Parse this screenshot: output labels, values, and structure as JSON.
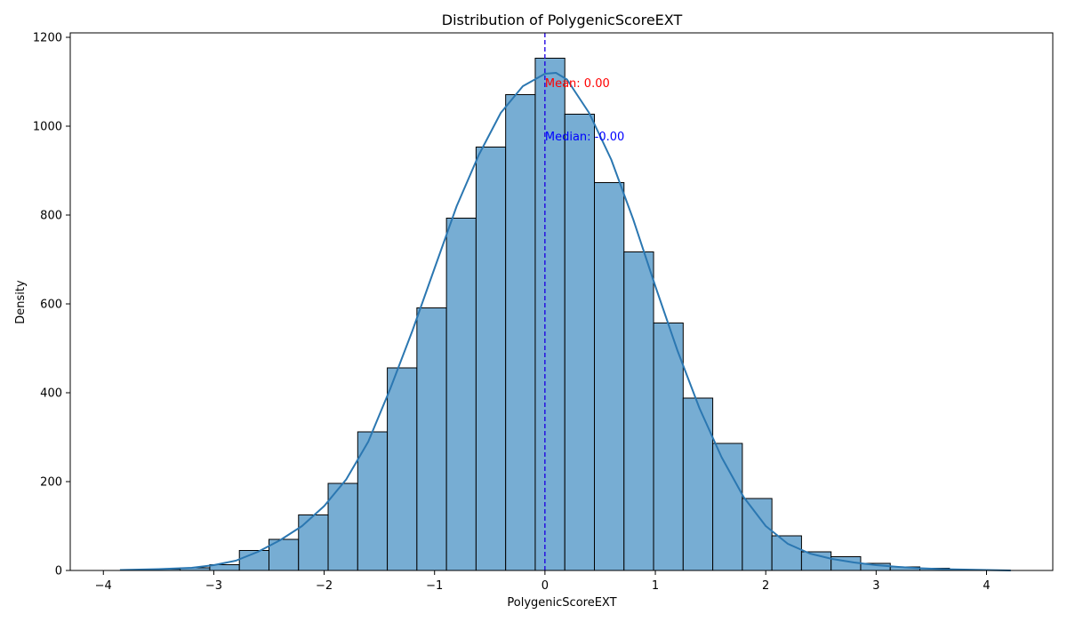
{
  "chart_data": {
    "type": "bar",
    "title": "Distribution of PolygenicScoreEXT",
    "xlabel": "PolygenicScoreEXT",
    "ylabel": "Density",
    "xlim": [
      -4.3,
      4.6
    ],
    "ylim": [
      0,
      1210
    ],
    "x_ticks": [
      -4,
      -3,
      -2,
      -1,
      0,
      1,
      2,
      3,
      4
    ],
    "x_tick_labels": [
      "−4",
      "−3",
      "−2",
      "−1",
      "0",
      "1",
      "2",
      "3",
      "4"
    ],
    "y_ticks": [
      0,
      200,
      400,
      600,
      800,
      1000,
      1200
    ],
    "y_tick_labels": [
      "0",
      "200",
      "400",
      "600",
      "800",
      "1000",
      "1200"
    ],
    "bins": {
      "start": -3.84,
      "width": 0.268,
      "counts": [
        1,
        3,
        6,
        13,
        45,
        70,
        125,
        196,
        312,
        456,
        591,
        793,
        953,
        1071,
        1153,
        1027,
        873,
        717,
        557,
        388,
        286,
        162,
        78,
        42,
        31,
        16,
        8,
        5,
        2,
        1
      ]
    },
    "kde": {
      "x": [
        -3.85,
        -3.5,
        -3.2,
        -3.0,
        -2.8,
        -2.6,
        -2.4,
        -2.2,
        -2.0,
        -1.8,
        -1.6,
        -1.4,
        -1.2,
        -1.0,
        -0.8,
        -0.6,
        -0.4,
        -0.2,
        0.0,
        0.1,
        0.2,
        0.4,
        0.6,
        0.8,
        1.0,
        1.2,
        1.4,
        1.6,
        1.8,
        2.0,
        2.2,
        2.4,
        2.6,
        2.8,
        3.0,
        3.2,
        3.4,
        3.6,
        3.8,
        4.0,
        4.22
      ],
      "y": [
        1,
        3,
        6,
        12,
        22,
        42,
        68,
        100,
        145,
        205,
        290,
        410,
        540,
        680,
        820,
        935,
        1030,
        1090,
        1118,
        1120,
        1105,
        1030,
        925,
        790,
        640,
        495,
        365,
        255,
        165,
        100,
        60,
        38,
        26,
        18,
        12,
        8,
        5,
        3,
        2,
        1,
        0
      ]
    },
    "mean": 0.0,
    "median": 0.0,
    "mean_label": "Mean: 0.00",
    "median_label": "Median: -0.00",
    "colors": {
      "bar_fill": "#77add3",
      "bar_edge": "#000000",
      "kde_line": "#2b77b1",
      "mean": "#ff0000",
      "median_line": "#0000ff",
      "median_text": "#0000ff"
    }
  }
}
